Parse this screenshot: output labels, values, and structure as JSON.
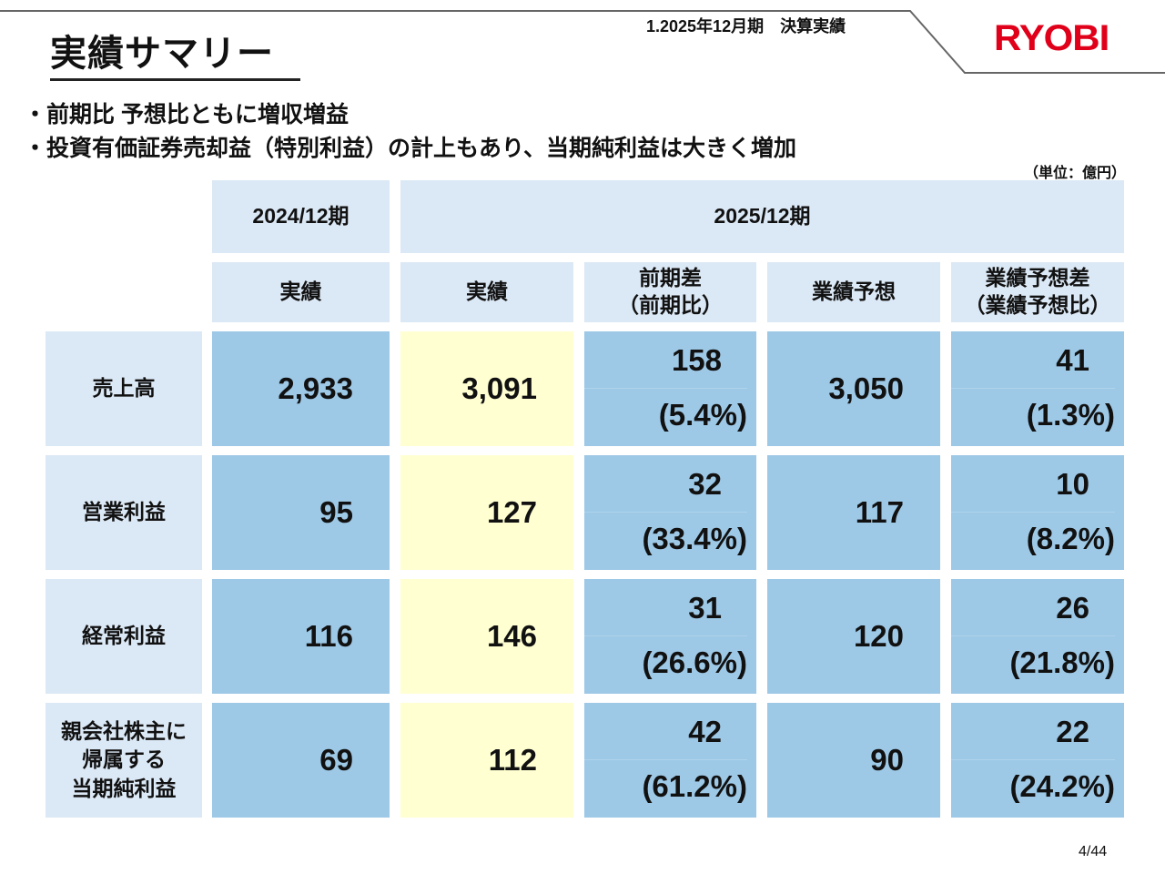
{
  "header": {
    "title": "実績サマリー",
    "section": "1.2025年12月期　決算実績",
    "logo": "RYOBI"
  },
  "bullets": [
    "・前期比 予想比ともに増収増益",
    "・投資有価証券売却益（特別利益）の計上もあり、当期純利益は大きく増加"
  ],
  "unit": "（単位：億円）",
  "table": {
    "period_headers": [
      "2024/12期",
      "2025/12期"
    ],
    "column_headers": [
      "実績",
      "実績",
      "前期差\n（前期比）",
      "業績予想",
      "業績予想差\n（業績予想比）"
    ],
    "rows": [
      {
        "label": "売上高",
        "prev_actual": "2,933",
        "actual": "3,091",
        "yoy_diff": "158",
        "yoy_pct": "(5.4%)",
        "forecast": "3,050",
        "fc_diff": "41",
        "fc_pct": "(1.3%)"
      },
      {
        "label": "営業利益",
        "prev_actual": "95",
        "actual": "127",
        "yoy_diff": "32",
        "yoy_pct": "(33.4%)",
        "forecast": "117",
        "fc_diff": "10",
        "fc_pct": "(8.2%)"
      },
      {
        "label": "経常利益",
        "prev_actual": "116",
        "actual": "146",
        "yoy_diff": "31",
        "yoy_pct": "(26.6%)",
        "forecast": "120",
        "fc_diff": "26",
        "fc_pct": "(21.8%)"
      },
      {
        "label": "親会社株主に\n帰属する\n当期純利益",
        "prev_actual": "69",
        "actual": "112",
        "yoy_diff": "42",
        "yoy_pct": "(61.2%)",
        "forecast": "90",
        "fc_diff": "22",
        "fc_pct": "(24.2%)"
      }
    ]
  },
  "colors": {
    "header_bg": "#dbe8f5",
    "value_bg": "#9dc8e6",
    "highlight_bg": "#ffffd2",
    "logo": "#e0001a"
  },
  "page": "4/44"
}
